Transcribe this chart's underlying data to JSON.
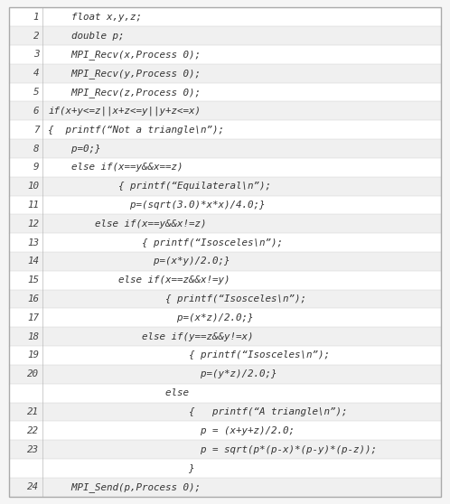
{
  "background_color": "#f5f5f5",
  "row_colors": [
    "#ffffff",
    "#f0f0f0"
  ],
  "border_color": "#aaaaaa",
  "line_number_color": "#444444",
  "code_color": "#333333",
  "figsize": [
    4.98,
    5.58
  ],
  "dpi": 100,
  "font_size": 7.8,
  "display_rows": [
    {
      "num": "1",
      "code": "    float x,y,z;"
    },
    {
      "num": "2",
      "code": "    double p;"
    },
    {
      "num": "3",
      "code": "    MPI_Recv(x,Process 0);"
    },
    {
      "num": "4",
      "code": "    MPI_Recv(y,Process 0);"
    },
    {
      "num": "5",
      "code": "    MPI_Recv(z,Process 0);"
    },
    {
      "num": "6",
      "code": "if(x+y<=z||x+z<=y||y+z<=x)"
    },
    {
      "num": "7",
      "code": "{  printf(“Not a triangle\\n”);"
    },
    {
      "num": "8",
      "code": "    p=0;}"
    },
    {
      "num": "9",
      "code": "    else if(x==y&&x==z)"
    },
    {
      "num": "10",
      "code": "            { printf(“Equilateral\\n”);"
    },
    {
      "num": "11",
      "code": "              p=(sqrt(3.0)*x*x)/4.0;}"
    },
    {
      "num": "12",
      "code": "        else if(x==y&&x!=z)"
    },
    {
      "num": "13",
      "code": "                { printf(“Isosceles\\n”);"
    },
    {
      "num": "14",
      "code": "                  p=(x*y)/2.0;}"
    },
    {
      "num": "15",
      "code": "            else if(x==z&&x!=y)"
    },
    {
      "num": "16",
      "code": "                    { printf(“Isosceles\\n”);"
    },
    {
      "num": "17",
      "code": "                      p=(x*z)/2.0;}"
    },
    {
      "num": "18",
      "code": "                else if(y==z&&y!=x)"
    },
    {
      "num": "19",
      "code": "                        { printf(“Isosceles\\n”);"
    },
    {
      "num": "20",
      "code": "                          p=(y*z)/2.0;}"
    },
    {
      "num": "",
      "code": "                    else"
    },
    {
      "num": "21",
      "code": "                        {   printf(“A triangle\\n”);"
    },
    {
      "num": "22",
      "code": "                          p = (x+y+z)/2.0;"
    },
    {
      "num": "23",
      "code": "                          p = sqrt(p*(p-x)*(p-y)*(p-z));"
    },
    {
      "num": "",
      "code": "                        }"
    },
    {
      "num": "24",
      "code": "    MPI_Send(p,Process 0);"
    }
  ]
}
